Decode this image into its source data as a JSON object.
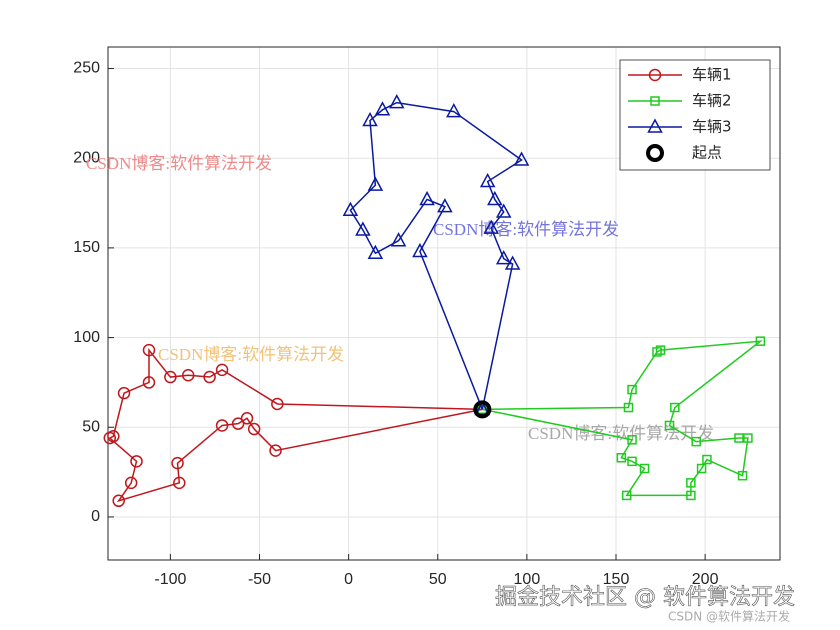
{
  "chart_data": {
    "type": "line",
    "xlim": [
      -135,
      242
    ],
    "ylim": [
      -24,
      262
    ],
    "xticks": [
      -100,
      -50,
      0,
      50,
      100,
      150,
      200
    ],
    "yticks": [
      0,
      50,
      100,
      150,
      200,
      250
    ],
    "grid": true,
    "legend": "top-right",
    "series": [
      {
        "name": "车辆1",
        "color": "#c0171c",
        "marker": "circle",
        "x": [
          75,
          -40,
          -71,
          -78,
          -90,
          -100,
          -112,
          -112,
          -126,
          -132,
          -134,
          -119,
          -122,
          -129,
          -95,
          -96,
          -71,
          -62,
          -57,
          -53,
          -41,
          75
        ],
        "y": [
          60,
          63,
          82,
          78,
          79,
          78,
          93,
          75,
          69,
          45,
          44,
          31,
          19,
          9,
          19,
          30,
          51,
          52,
          55,
          49,
          37,
          60
        ]
      },
      {
        "name": "车辆2",
        "color": "#1ecb1e",
        "marker": "square",
        "x": [
          75,
          157,
          159,
          173,
          175,
          231,
          183,
          180,
          195,
          219,
          224,
          221,
          201,
          198,
          192,
          192,
          156,
          166,
          159,
          153,
          159,
          75
        ],
        "y": [
          60,
          61,
          71,
          92,
          93,
          98,
          61,
          51,
          42,
          44,
          44,
          23,
          32,
          27,
          19,
          12,
          12,
          27,
          31,
          33,
          43,
          60
        ]
      },
      {
        "name": "车辆3",
        "color": "#0a1aa0",
        "marker": "triangle",
        "x": [
          75,
          40,
          54,
          44,
          28,
          15,
          8,
          1,
          15,
          12,
          19,
          27,
          59,
          97,
          78,
          82,
          87,
          80,
          87,
          92,
          75
        ],
        "y": [
          60,
          148,
          173,
          177,
          154,
          147,
          160,
          171,
          185,
          221,
          227,
          231,
          226,
          199,
          187,
          177,
          170,
          161,
          144,
          141,
          60
        ]
      },
      {
        "name": "起点",
        "color": "#000000",
        "marker": "start",
        "type": "scatter",
        "x": [
          75
        ],
        "y": [
          60
        ]
      }
    ],
    "annotations": [
      {
        "text": "CSDN博客:软件算法开发",
        "color": "#f08a8a"
      },
      {
        "text": "CSDN博客:软件算法开发",
        "color": "#7474dc"
      },
      {
        "text": "CSDN博客:软件算法开发",
        "color": "#f2c278"
      },
      {
        "text": "CSDN博客:软件算法开发",
        "color": "#a8a8a8"
      }
    ],
    "watermarks": [
      "掘金技术社区 @ 软件算法开发",
      "CSDN @软件算法开发"
    ]
  }
}
